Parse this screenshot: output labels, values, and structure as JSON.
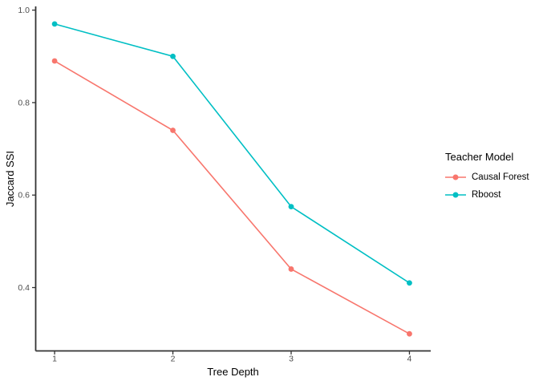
{
  "chart_data": {
    "type": "line",
    "x": [
      1,
      2,
      3,
      4
    ],
    "series": [
      {
        "name": "Causal Forest",
        "color": "#F8766D",
        "values": [
          0.89,
          0.74,
          0.44,
          0.3
        ]
      },
      {
        "name": "Rboost",
        "color": "#00BFC4",
        "values": [
          0.97,
          0.9,
          0.575,
          0.41
        ]
      }
    ],
    "xlabel": "Tree Depth",
    "ylabel": "Jaccard SSI",
    "xlim": [
      0.84,
      4.18
    ],
    "ylim": [
      0.263,
      1.008
    ],
    "xticks": [
      1,
      2,
      3,
      4
    ],
    "xtick_labels": [
      "1",
      "2",
      "3",
      "4"
    ],
    "yticks": [
      0.4,
      0.6,
      0.8,
      1.0
    ],
    "ytick_labels": [
      "0.4",
      "0.6",
      "0.8",
      "1.0"
    ],
    "grid": false,
    "legend": {
      "title": "Teacher Model",
      "position": "right"
    },
    "marker": "circle",
    "background": "#FFFFFF",
    "axis_color": "#333333",
    "tick_label_color": "#4D4D4D"
  }
}
